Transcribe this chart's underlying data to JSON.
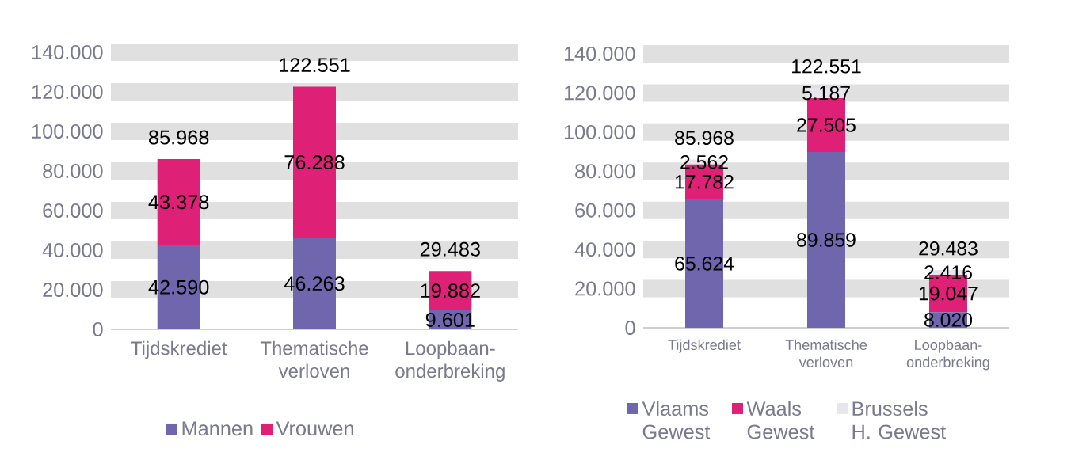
{
  "chart_data": [
    {
      "type": "bar",
      "stacked": true,
      "categories": [
        "Tijdskrediet",
        "Thematische verloven",
        "Loopbaan-onderbreking"
      ],
      "series": [
        {
          "name": "Mannen",
          "color": "#6f66ad",
          "values": [
            42590,
            46263,
            9601
          ],
          "value_labels": [
            "42.590",
            "46.263",
            "9.601"
          ]
        },
        {
          "name": "Vrouwen",
          "color": "#de2076",
          "values": [
            43378,
            76288,
            19882
          ],
          "value_labels": [
            "43.378",
            "76.288",
            "19.882"
          ]
        }
      ],
      "totals": [
        "85.968",
        "122.551",
        "29.483"
      ],
      "ylim": [
        0,
        140000
      ],
      "yticks": [
        0,
        {
          "value": 20000,
          "label": "20.000"
        },
        {
          "value": 40000,
          "label": "40.000"
        },
        {
          "value": 60000,
          "label": "60.000"
        },
        {
          "value": 80000,
          "label": "80.000"
        },
        {
          "value": 100000,
          "label": "100.000"
        },
        {
          "value": 120000,
          "label": "120.000"
        },
        {
          "value": 140000,
          "label": "140.000"
        }
      ],
      "grid": "y",
      "legend": "bottom"
    },
    {
      "type": "bar",
      "stacked": true,
      "categories": [
        "Tijdskrediet",
        "Thematische verloven",
        "Loopbaan-onderbreking"
      ],
      "series": [
        {
          "name": "Vlaams Gewest",
          "color": "#6f66ad",
          "values": [
            65624,
            89859,
            8020
          ],
          "value_labels": [
            "65.624",
            "89.859",
            "8.020"
          ]
        },
        {
          "name": "Waals Gewest",
          "color": "#de2076",
          "values": [
            17782,
            27505,
            19047
          ],
          "value_labels": [
            "17.782",
            "27.505",
            "19.047"
          ]
        },
        {
          "name": "Brussels H. Gewest",
          "color": "#e6e6ec",
          "values": [
            2562,
            5187,
            2416
          ],
          "value_labels": [
            "2.562",
            "5.187",
            "2.416"
          ]
        }
      ],
      "totals": [
        "85.968",
        "122.551",
        "29.483"
      ],
      "ylim": [
        0,
        140000
      ],
      "yticks": [
        0,
        {
          "value": 20000,
          "label": "20.000"
        },
        {
          "value": 40000,
          "label": "40.000"
        },
        {
          "value": 60000,
          "label": "60.000"
        },
        {
          "value": 80000,
          "label": "80.000"
        },
        {
          "value": 100000,
          "label": "100.000"
        },
        {
          "value": 120000,
          "label": "120.000"
        },
        {
          "value": 140000,
          "label": "140.000"
        }
      ],
      "grid": "y",
      "legend": "bottom"
    }
  ]
}
